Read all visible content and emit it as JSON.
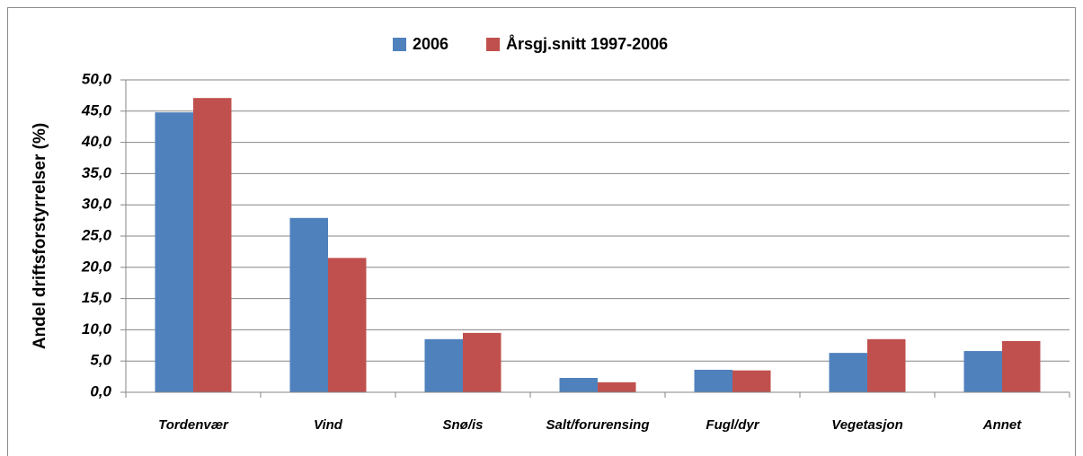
{
  "chart_data": {
    "type": "bar",
    "y_label": "Andel driftsforstyrrelser (%)",
    "categories": [
      "Tordenvær",
      "Vind",
      "Snø/is",
      "Salt/forurensing",
      "Fugl/dyr",
      "Vegetasjon",
      "Annet"
    ],
    "series": [
      {
        "name": "2006",
        "color": "#4f81bd",
        "values": [
          44.8,
          27.9,
          8.5,
          2.3,
          3.6,
          6.3,
          6.6
        ]
      },
      {
        "name": "Årsgj.snitt 1997-2006",
        "color": "#c0504d",
        "values": [
          47.1,
          21.5,
          9.5,
          1.6,
          3.5,
          8.5,
          8.2
        ]
      }
    ],
    "ylim": [
      0,
      50
    ],
    "yticks": [
      {
        "value": 0,
        "label": "0,0"
      },
      {
        "value": 5,
        "label": "5,0"
      },
      {
        "value": 10,
        "label": "10,0"
      },
      {
        "value": 15,
        "label": "15,0"
      },
      {
        "value": 20,
        "label": "20,0"
      },
      {
        "value": 25,
        "label": "25,0"
      },
      {
        "value": 30,
        "label": "30,0"
      },
      {
        "value": 35,
        "label": "35,0"
      },
      {
        "value": 40,
        "label": "40,0"
      },
      {
        "value": 45,
        "label": "45,0"
      },
      {
        "value": 50,
        "label": "50,0"
      }
    ],
    "grid": true,
    "legend": "top"
  }
}
